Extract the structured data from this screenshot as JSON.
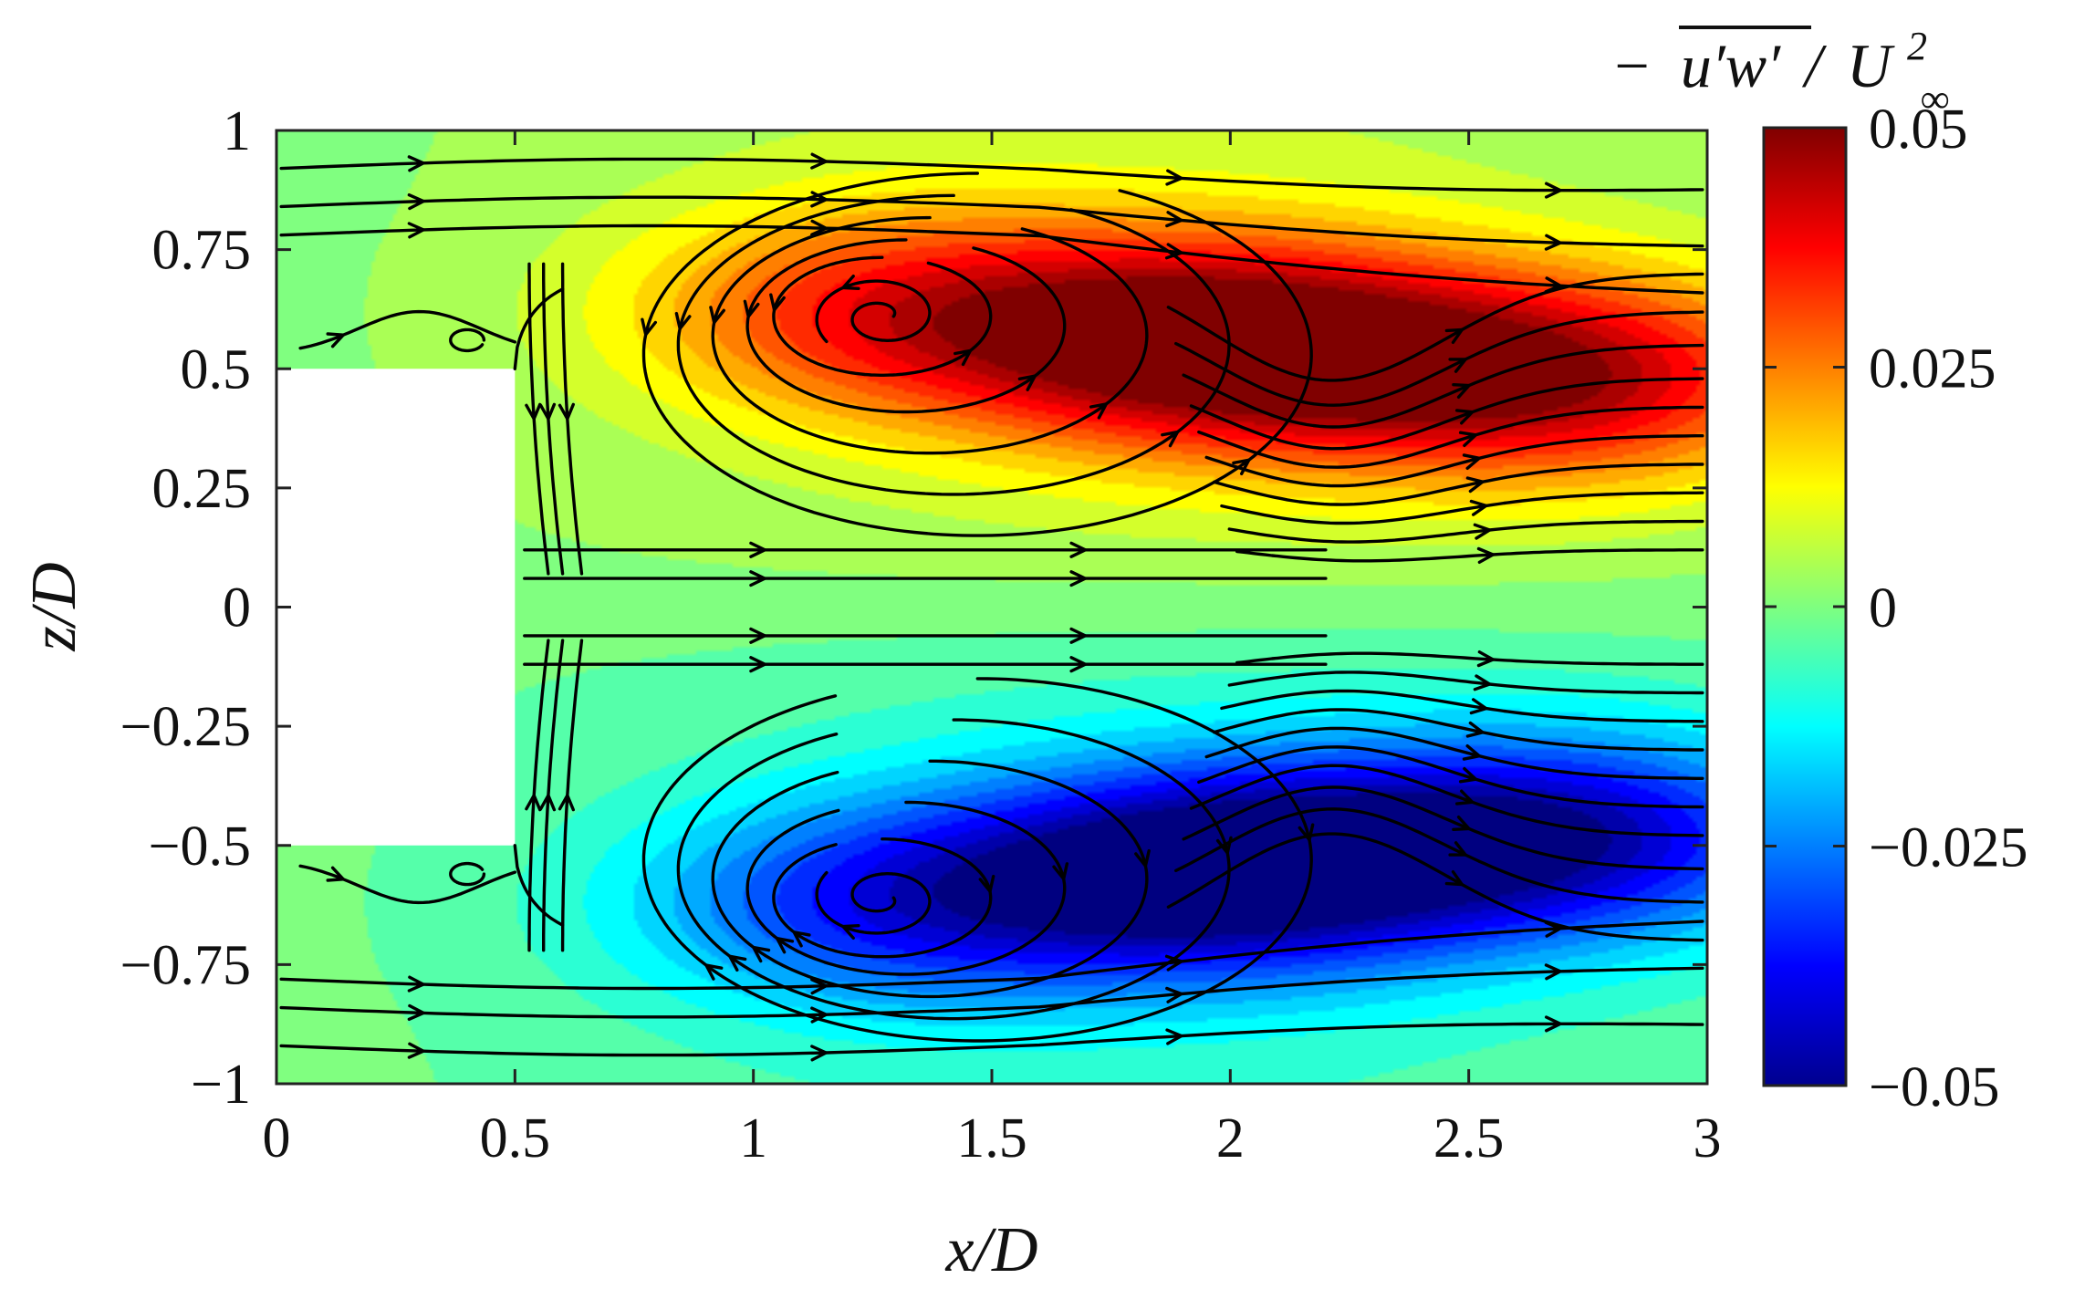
{
  "chart_data": {
    "type": "heatmap",
    "title": "",
    "xlabel": "x/D",
    "ylabel": "z/D",
    "xlim": [
      0,
      3
    ],
    "ylim": [
      -1,
      1
    ],
    "x_ticks": [
      0,
      0.5,
      1,
      1.5,
      2,
      2.5,
      3
    ],
    "x_tick_labels": [
      "0",
      "0.5",
      "1",
      "1.5",
      "2",
      "2.5",
      "3"
    ],
    "y_ticks": [
      -1,
      -0.75,
      -0.5,
      -0.25,
      0,
      0.25,
      0.5,
      0.75,
      1
    ],
    "y_tick_labels": [
      "−1",
      "−0.75",
      "−0.5",
      "−0.25",
      "0",
      "0.25",
      "0.5",
      "0.75",
      "1"
    ],
    "grid": false,
    "colormap": "jet",
    "colorbar": {
      "title_parts": [
        "−",
        "u′w′",
        "/",
        "U",
        "2",
        "∞"
      ],
      "clim": [
        -0.05,
        0.05
      ],
      "ticks": [
        -0.05,
        -0.025,
        0,
        0.025,
        0.05
      ],
      "tick_labels": [
        "−0.05",
        "−0.025",
        "0",
        "0.025",
        "0.05"
      ]
    },
    "obstacle": {
      "x": [
        0,
        0.5
      ],
      "z": [
        -0.5,
        0.5
      ]
    },
    "field_features": [
      {
        "sign": "positive",
        "x": 1.3,
        "z": 0.62,
        "value": 0.03
      },
      {
        "sign": "positive",
        "x": 2.0,
        "z": 0.55,
        "value": 0.05
      },
      {
        "sign": "positive",
        "x": 2.7,
        "z": 0.48,
        "value": 0.04
      },
      {
        "sign": "negative",
        "x": 1.3,
        "z": -0.62,
        "value": -0.03
      },
      {
        "sign": "negative",
        "x": 2.0,
        "z": -0.55,
        "value": -0.05
      },
      {
        "sign": "negative",
        "x": 2.7,
        "z": -0.48,
        "value": -0.04
      }
    ],
    "vortex_centers": [
      {
        "x": 1.27,
        "z": 0.61
      },
      {
        "x": 1.27,
        "z": -0.61
      },
      {
        "x": 0.4,
        "z": 0.56
      },
      {
        "x": 0.4,
        "z": -0.56
      }
    ],
    "saddle_point": {
      "x": 2.22,
      "z": 0.0
    }
  }
}
